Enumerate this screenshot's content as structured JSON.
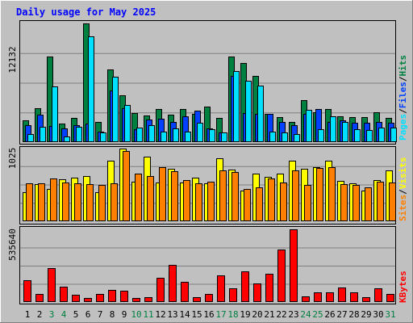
{
  "chart_data": {
    "type": "bar",
    "title": "Daily usage for May 2025",
    "categories": [
      "1",
      "2",
      "3",
      "4",
      "5",
      "6",
      "7",
      "8",
      "9",
      "10",
      "11",
      "12",
      "13",
      "14",
      "15",
      "16",
      "17",
      "18",
      "19",
      "20",
      "21",
      "22",
      "23",
      "24",
      "25",
      "26",
      "27",
      "28",
      "29",
      "30",
      "31"
    ],
    "weekend_days": [
      "3",
      "4",
      "10",
      "11",
      "17",
      "18",
      "24",
      "25",
      "31"
    ],
    "colors": {
      "hits": "#008040",
      "files": "#0040ff",
      "pages": "#00e0ff",
      "visits": "#ffff00",
      "sites": "#ff8000",
      "kbytes": "#ff0000",
      "title": "#0000ff",
      "weekend_label": "#008040",
      "weekday_label": "#000000",
      "background": "#c0c0c0"
    },
    "panels": [
      {
        "id": "hits-files-pages",
        "y_max_label": "12132",
        "y_max": 12132,
        "legend": [
          "Pages",
          "/",
          "Files",
          "/",
          "Hits"
        ],
        "series": [
          {
            "name": "Hits",
            "values": [
              2240,
              3500,
              8760,
              1870,
              2460,
              12132,
              2100,
              7430,
              4750,
              2950,
              2690,
              3420,
              2790,
              3410,
              2900,
              3610,
              2510,
              8750,
              8110,
              6780,
              2880,
              2550,
              2090,
              4270,
              3070,
              3400,
              2650,
              2530,
              2590,
              3080,
              2500
            ]
          },
          {
            "name": "Files",
            "values": [
              1760,
              2800,
              1610,
              1420,
              1700,
              1900,
              1100,
              5300,
              3500,
              1350,
              2300,
              2400,
              2100,
              2600,
              3200,
              1400,
              1000,
              6800,
              3000,
              2900,
              2900,
              2100,
              1700,
              2900,
              3400,
              2100,
              2200,
              2000,
              2000,
              2100,
              2000
            ]
          },
          {
            "name": "Pages",
            "values": [
              800,
              1600,
              5700,
              600,
              1600,
              10800,
              1000,
              6700,
              3800,
              1500,
              1700,
              1100,
              1400,
              1100,
              2000,
              1300,
              1000,
              7300,
              6300,
              5800,
              1100,
              1000,
              800,
              3300,
              1300,
              2600,
              2100,
              1300,
              1200,
              1500,
              1500
            ]
          }
        ]
      },
      {
        "id": "visits-sites",
        "y_max_label": "1025",
        "y_max": 1025,
        "legend": [
          "Sites",
          "/",
          "Visits"
        ],
        "series": [
          {
            "name": "Visits",
            "values": [
              400,
              520,
              450,
              590,
              605,
              630,
              410,
              845,
              1015,
              555,
              900,
              540,
              730,
              540,
              610,
              530,
              880,
              720,
              430,
              665,
              620,
              660,
              850,
              730,
              760,
              840,
              560,
              535,
              430,
              580,
              710
            ]
          },
          {
            "name": "Sites",
            "values": [
              525,
              525,
              600,
              545,
              525,
              520,
              510,
              525,
              980,
              665,
              635,
              750,
              700,
              580,
              535,
              550,
              705,
              685,
              450,
              475,
              595,
              545,
              710,
              510,
              740,
              760,
              520,
              510,
              470,
              550,
              545
            ]
          }
        ]
      },
      {
        "id": "kbytes",
        "y_max_label": "535640",
        "y_max": 535640,
        "legend": [
          "KBytes"
        ],
        "series": [
          {
            "name": "KBytes",
            "values": [
              160000,
              60000,
              248000,
              112000,
              56000,
              28000,
              62000,
              88000,
              84000,
              28000,
              36000,
              176000,
              276000,
              147000,
              36000,
              62000,
              194000,
              104000,
              224000,
              134000,
              208000,
              384000,
              535640,
              40000,
              74000,
              74000,
              108000,
              70000,
              34000,
              100000,
              62000
            ]
          }
        ]
      }
    ]
  }
}
